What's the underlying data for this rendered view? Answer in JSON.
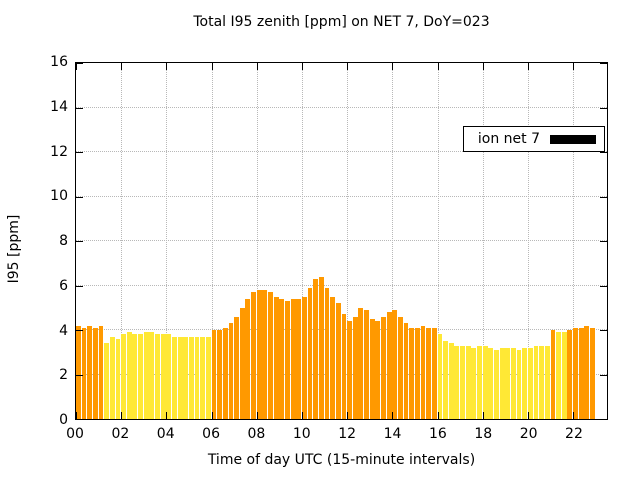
{
  "title": "Total I95 zenith [ppm] on NET 7, DoY=023",
  "legend": {
    "label": "ion net 7",
    "swatch_color": "#000000"
  },
  "axes": {
    "y_label": "I95 [ppm]",
    "x_label": "Time of day UTC (15-minute intervals)"
  },
  "palette": {
    "orange": "#FF9900",
    "yellow": "#FFE835"
  },
  "chart_data": {
    "type": "bar",
    "title": "Total I95 zenith [ppm] on NET 7, DoY=023",
    "xlabel": "Time of day UTC (15-minute intervals)",
    "ylabel": "I95 [ppm]",
    "ylim": [
      0,
      16
    ],
    "x_range_hours": [
      0,
      23.5
    ],
    "interval_minutes": 15,
    "grid": true,
    "legend_position": "top-right",
    "y_ticks": [
      0,
      2,
      4,
      6,
      8,
      10,
      12,
      14,
      16
    ],
    "x_ticks": [
      "00",
      "02",
      "04",
      "06",
      "08",
      "10",
      "12",
      "14",
      "16",
      "18",
      "20",
      "22"
    ],
    "series_name": "ion net 7",
    "times": [
      "00:00",
      "00:15",
      "00:30",
      "00:45",
      "01:00",
      "01:15",
      "01:30",
      "01:45",
      "02:00",
      "02:15",
      "02:30",
      "02:45",
      "03:00",
      "03:15",
      "03:30",
      "03:45",
      "04:00",
      "04:15",
      "04:30",
      "04:45",
      "05:00",
      "05:15",
      "05:30",
      "05:45",
      "06:00",
      "06:15",
      "06:30",
      "06:45",
      "07:00",
      "07:15",
      "07:30",
      "07:45",
      "08:00",
      "08:15",
      "08:30",
      "08:45",
      "09:00",
      "09:15",
      "09:30",
      "09:45",
      "10:00",
      "10:15",
      "10:30",
      "10:45",
      "11:00",
      "11:15",
      "11:30",
      "11:45",
      "12:00",
      "12:15",
      "12:30",
      "12:45",
      "13:00",
      "13:15",
      "13:30",
      "13:45",
      "14:00",
      "14:15",
      "14:30",
      "14:45",
      "15:00",
      "15:15",
      "15:30",
      "15:45",
      "16:00",
      "16:15",
      "16:30",
      "16:45",
      "17:00",
      "17:15",
      "17:30",
      "17:45",
      "18:00",
      "18:15",
      "18:30",
      "18:45",
      "19:00",
      "19:15",
      "19:30",
      "19:45",
      "20:00",
      "20:15",
      "20:30",
      "20:45",
      "21:00",
      "21:15",
      "21:30",
      "21:45",
      "22:00",
      "22:15",
      "22:30",
      "22:45"
    ],
    "values": [
      4.2,
      4.1,
      4.2,
      4.1,
      4.2,
      3.4,
      3.7,
      3.6,
      3.8,
      3.9,
      3.8,
      3.8,
      3.9,
      3.9,
      3.8,
      3.8,
      3.8,
      3.7,
      3.7,
      3.7,
      3.7,
      3.7,
      3.7,
      3.7,
      4.0,
      4.0,
      4.1,
      4.3,
      4.6,
      5.0,
      5.4,
      5.7,
      5.8,
      5.8,
      5.7,
      5.5,
      5.4,
      5.3,
      5.4,
      5.4,
      5.5,
      5.9,
      6.3,
      6.4,
      5.9,
      5.5,
      5.2,
      4.7,
      4.4,
      4.6,
      5.0,
      4.9,
      4.5,
      4.4,
      4.6,
      4.8,
      4.9,
      4.6,
      4.3,
      4.1,
      4.1,
      4.2,
      4.1,
      4.1,
      3.8,
      3.5,
      3.4,
      3.3,
      3.3,
      3.3,
      3.2,
      3.3,
      3.3,
      3.2,
      3.1,
      3.2,
      3.2,
      3.2,
      3.1,
      3.2,
      3.2,
      3.3,
      3.3,
      3.3,
      4.0,
      3.9,
      3.9,
      4.0,
      4.1,
      4.1,
      4.2,
      4.1
    ],
    "bar_colors": [
      "orange",
      "orange",
      "orange",
      "orange",
      "orange",
      "yellow",
      "yellow",
      "yellow",
      "yellow",
      "yellow",
      "yellow",
      "yellow",
      "yellow",
      "yellow",
      "yellow",
      "yellow",
      "yellow",
      "yellow",
      "yellow",
      "yellow",
      "yellow",
      "yellow",
      "yellow",
      "yellow",
      "orange",
      "orange",
      "orange",
      "orange",
      "orange",
      "orange",
      "orange",
      "orange",
      "orange",
      "orange",
      "orange",
      "orange",
      "orange",
      "orange",
      "orange",
      "orange",
      "orange",
      "orange",
      "orange",
      "orange",
      "orange",
      "orange",
      "orange",
      "orange",
      "orange",
      "orange",
      "orange",
      "orange",
      "orange",
      "orange",
      "orange",
      "orange",
      "orange",
      "orange",
      "orange",
      "orange",
      "orange",
      "orange",
      "orange",
      "orange",
      "yellow",
      "yellow",
      "yellow",
      "yellow",
      "yellow",
      "yellow",
      "yellow",
      "yellow",
      "yellow",
      "yellow",
      "yellow",
      "yellow",
      "yellow",
      "yellow",
      "yellow",
      "yellow",
      "yellow",
      "yellow",
      "yellow",
      "yellow",
      "orange",
      "yellow",
      "yellow",
      "orange",
      "orange",
      "orange",
      "orange",
      "orange"
    ]
  }
}
